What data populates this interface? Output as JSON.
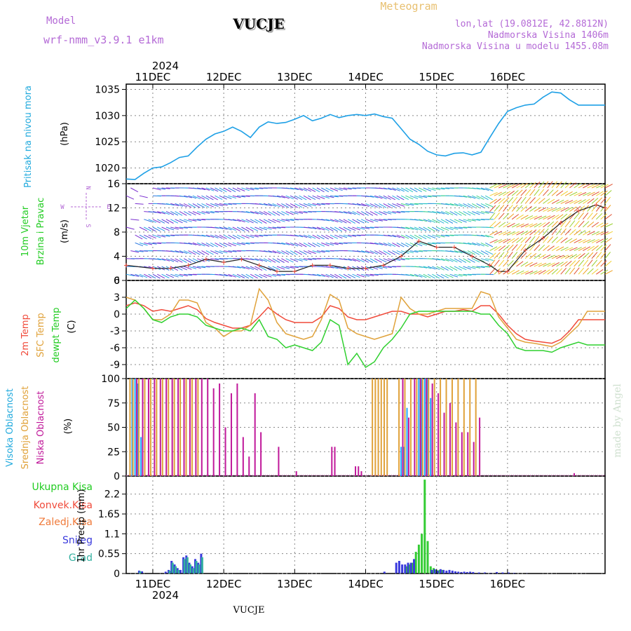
{
  "header": {
    "app_title": "Meteogram",
    "model_label": "Model",
    "model_name": "wrf-nmm_v3.9.1  e1km",
    "station": "VUCJE",
    "coords": "lon,lat (19.0812E, 42.8812N)",
    "altitude": "Nadmorska Visina 1406m",
    "model_altitude": "Nadmorska Visina u modelu 1455.08m",
    "watermark": "made by Angel",
    "footer_station": "VUCJE"
  },
  "colors": {
    "pressure": "#1ea0e6",
    "t2m": "#f04a3a",
    "sfc": "#e0a23a",
    "dew": "#2fd02f",
    "high": "#22aaff",
    "mid": "#e0a23a",
    "low": "#c0189a",
    "precip_total": "#33cc33",
    "precip_conv": "#f04a3a",
    "snow": "#3b3bdd",
    "hail": "#33b0a0"
  },
  "time_axis": {
    "year": "2024",
    "days": [
      "11DEC",
      "12DEC",
      "13DEC",
      "14DEC",
      "15DEC",
      "16DEC"
    ],
    "x_range_hours": [
      -9,
      153
    ]
  },
  "chart_data": [
    {
      "type": "line",
      "panel": "pressure",
      "ylabel": "Pritisak na nivou mora",
      "unit": "(hPa)",
      "ylim": [
        1017,
        1036
      ],
      "yticks": [
        1020,
        1025,
        1030,
        1035
      ],
      "x": [
        -9,
        -6,
        -3,
        0,
        3,
        6,
        9,
        12,
        15,
        18,
        21,
        24,
        27,
        30,
        33,
        36,
        39,
        42,
        45,
        48,
        51,
        54,
        57,
        60,
        63,
        66,
        69,
        72,
        75,
        78,
        81,
        84,
        87,
        90,
        93,
        96,
        99,
        102,
        105,
        108,
        111,
        114,
        117,
        120,
        123,
        126,
        129,
        132,
        135,
        138,
        141,
        144,
        147,
        150,
        153
      ],
      "values": [
        1017.9,
        1017.8,
        1019.0,
        1020.0,
        1020.2,
        1021.0,
        1022.0,
        1022.3,
        1024.0,
        1025.5,
        1026.5,
        1027.0,
        1027.8,
        1027.0,
        1025.8,
        1027.8,
        1028.8,
        1028.5,
        1028.7,
        1029.3,
        1030.0,
        1029.0,
        1029.5,
        1030.2,
        1029.6,
        1030.0,
        1030.2,
        1030.0,
        1030.3,
        1029.8,
        1029.5,
        1027.5,
        1025.5,
        1024.5,
        1023.2,
        1022.5,
        1022.3,
        1022.8,
        1022.9,
        1022.5,
        1023.0,
        1025.8,
        1028.5,
        1030.8,
        1031.5,
        1032.0,
        1032.2,
        1033.5,
        1034.5,
        1034.3,
        1033.0,
        1032.0,
        1032.0,
        1032.0,
        1032.0
      ]
    },
    {
      "type": "line",
      "panel": "wind",
      "ylabel": "10m Vjetar Brzina i Pravac",
      "unit": "(m/s)",
      "ylim": [
        0,
        16
      ],
      "yticks": [
        0,
        4,
        8,
        12,
        16
      ],
      "compass": [
        "N",
        "E",
        "S",
        "W"
      ],
      "x": [
        -9,
        0,
        6,
        12,
        18,
        24,
        30,
        36,
        42,
        48,
        54,
        60,
        66,
        72,
        78,
        84,
        90,
        96,
        102,
        108,
        114,
        117,
        120,
        126,
        132,
        138,
        144,
        150,
        153
      ],
      "values": [
        2.5,
        2.0,
        2.0,
        2.5,
        3.5,
        3.0,
        3.5,
        2.5,
        1.5,
        1.5,
        2.5,
        2.5,
        2.0,
        2.0,
        2.5,
        4.0,
        6.5,
        5.5,
        5.5,
        4.0,
        2.5,
        1.5,
        1.5,
        5.0,
        7.0,
        9.5,
        11.5,
        12.5,
        12.0
      ]
    },
    {
      "type": "line",
      "panel": "temperature",
      "ylabel": "2m Temp / SFC Temp / dewpt Temp",
      "unit": "(C)",
      "ylim": [
        -11.5,
        6
      ],
      "yticks": [
        6,
        3,
        0,
        -3,
        -6,
        -9
      ],
      "x": [
        -9,
        -6,
        -3,
        0,
        3,
        6,
        9,
        12,
        15,
        18,
        21,
        24,
        27,
        30,
        33,
        36,
        39,
        42,
        45,
        48,
        51,
        54,
        57,
        60,
        63,
        66,
        69,
        72,
        75,
        78,
        81,
        84,
        87,
        90,
        93,
        96,
        99,
        102,
        105,
        108,
        111,
        114,
        117,
        120,
        123,
        126,
        129,
        132,
        135,
        138,
        141,
        144,
        147,
        150,
        153
      ],
      "series": [
        {
          "name": "2m Temp",
          "values": [
            1.5,
            2.0,
            1.5,
            0.5,
            0.8,
            0.5,
            1.0,
            1.5,
            0.8,
            -0.8,
            -1.5,
            -2.0,
            -2.5,
            -2.5,
            -2.0,
            -0.5,
            1.2,
            0.0,
            -1.0,
            -1.5,
            -1.5,
            -1.5,
            -0.5,
            1.5,
            1.0,
            -0.5,
            -1.0,
            -1.0,
            -0.5,
            0.0,
            0.5,
            0.5,
            0.0,
            0.0,
            -0.5,
            0.0,
            0.5,
            0.5,
            0.8,
            0.5,
            1.5,
            1.5,
            0.0,
            -2.0,
            -3.5,
            -4.5,
            -4.8,
            -5.0,
            -5.2,
            -4.5,
            -3.0,
            -1.0,
            -1.0,
            -1.0,
            -1.0
          ]
        },
        {
          "name": "SFC Temp",
          "values": [
            3.0,
            2.5,
            1.0,
            -1.0,
            -1.0,
            0.0,
            2.5,
            2.5,
            2.0,
            -1.5,
            -2.5,
            -4.0,
            -3.0,
            -3.0,
            -2.0,
            4.5,
            2.5,
            -1.5,
            -3.5,
            -4.0,
            -4.5,
            -4.0,
            -1.0,
            3.5,
            2.5,
            -2.5,
            -3.5,
            -4.0,
            -4.5,
            -4.0,
            -3.5,
            3.0,
            1.0,
            0.0,
            0.0,
            0.5,
            1.0,
            1.0,
            1.0,
            1.0,
            4.0,
            3.5,
            -0.5,
            -2.5,
            -4.5,
            -5.0,
            -5.2,
            -5.5,
            -5.8,
            -5.0,
            -3.5,
            -2.0,
            0.5,
            0.5,
            0.5
          ]
        },
        {
          "name": "dewpt Temp",
          "values": [
            1.0,
            2.5,
            1.0,
            -1.0,
            -1.5,
            -0.5,
            0.0,
            0.0,
            -0.5,
            -2.0,
            -2.5,
            -3.0,
            -3.0,
            -2.5,
            -3.0,
            -1.0,
            -4.0,
            -4.5,
            -6.0,
            -5.5,
            -6.0,
            -6.5,
            -5.0,
            -1.0,
            -2.0,
            -9.0,
            -7.0,
            -9.5,
            -8.5,
            -6.0,
            -4.5,
            -2.5,
            0.0,
            0.5,
            0.5,
            0.5,
            0.5,
            0.5,
            0.5,
            0.5,
            0.0,
            0.0,
            -2.0,
            -3.5,
            -6.0,
            -6.5,
            -6.5,
            -6.5,
            -6.8,
            -6.0,
            -5.5,
            -5.0,
            -5.5,
            -5.5,
            -5.5
          ]
        }
      ]
    },
    {
      "type": "bar",
      "panel": "cloud",
      "ylabel": "Visoka Oblacnost / Srednja Oblacnost / Niska Oblacnost",
      "unit": "(%)",
      "ylim": [
        0,
        100
      ],
      "yticks": [
        0,
        25,
        50,
        75,
        100
      ],
      "series": [
        {
          "name": "Visoka Oblacnost",
          "x": [
            -7,
            -6,
            -5,
            -4,
            84,
            85,
            86,
            90,
            91,
            92,
            93,
            94
          ],
          "values": [
            100,
            100,
            95,
            40,
            30,
            30,
            70,
            100,
            100,
            100,
            100,
            80
          ]
        },
        {
          "name": "Srednja Oblacnost",
          "x": [
            -8,
            -7,
            -5,
            -3,
            -1,
            1,
            3,
            5,
            7,
            9,
            11,
            13,
            15,
            74,
            75,
            76,
            77,
            78,
            79,
            83,
            85,
            87,
            89,
            91,
            93,
            95,
            97,
            99,
            101,
            103,
            105,
            107,
            109
          ],
          "values": [
            100,
            100,
            100,
            100,
            100,
            100,
            100,
            100,
            100,
            100,
            100,
            100,
            100,
            100,
            100,
            100,
            100,
            100,
            100,
            100,
            100,
            100,
            100,
            100,
            100,
            100,
            100,
            100,
            100,
            100,
            100,
            100,
            100
          ]
        },
        {
          "name": "Niska Oblacnost",
          "x": [
            -6,
            -4,
            -2,
            0,
            2,
            4,
            6,
            8,
            10,
            12,
            14,
            16,
            18,
            20,
            22,
            24,
            26,
            28,
            30,
            32,
            34,
            36,
            42,
            48,
            60,
            61,
            68,
            69,
            70,
            84,
            86,
            88,
            90,
            92,
            94,
            96,
            98,
            100,
            102,
            104,
            106,
            108,
            110,
            142
          ],
          "values": [
            100,
            100,
            100,
            100,
            100,
            100,
            100,
            100,
            100,
            100,
            100,
            100,
            100,
            90,
            95,
            50,
            85,
            95,
            40,
            20,
            85,
            45,
            30,
            5,
            30,
            30,
            10,
            10,
            5,
            100,
            60,
            100,
            100,
            100,
            95,
            85,
            65,
            75,
            55,
            45,
            45,
            35,
            60,
            3
          ]
        }
      ]
    },
    {
      "type": "bar",
      "panel": "precip",
      "ylabel": "1hr Precip",
      "unit": "(mm)",
      "ylim": [
        0,
        2.7
      ],
      "yticks": [
        0,
        0.55,
        1.1,
        1.65,
        2.2
      ],
      "legend": [
        "Ukupna Kisa",
        "Konvek.Kisa",
        "Zaledj.Kisa",
        "Snijeg",
        "Grad"
      ],
      "series": [
        {
          "name": "Ukupna Kisa",
          "x": [
            86,
            87,
            88,
            89,
            90,
            91,
            92,
            93,
            94,
            95,
            96,
            97,
            98
          ],
          "values": [
            0.2,
            0.25,
            0.3,
            0.6,
            0.8,
            1.1,
            2.6,
            0.9,
            0.2,
            0.15,
            0.1,
            0.1,
            0.1
          ]
        },
        {
          "name": "Snijeg",
          "x": [
            -5,
            -4,
            4,
            5,
            6,
            7,
            8,
            9,
            10,
            11,
            12,
            13,
            14,
            15,
            16,
            78,
            82,
            83,
            84,
            85,
            86,
            87,
            88,
            94,
            95,
            96,
            97,
            98,
            99,
            100,
            101,
            102,
            103,
            104,
            105,
            106,
            107,
            108,
            110,
            112,
            114,
            116,
            118,
            120,
            122,
            124,
            126
          ],
          "values": [
            0.08,
            0.06,
            0.05,
            0.1,
            0.35,
            0.25,
            0.15,
            0.1,
            0.45,
            0.5,
            0.3,
            0.2,
            0.4,
            0.3,
            0.55,
            0.05,
            0.3,
            0.35,
            0.25,
            0.25,
            0.3,
            0.3,
            0.4,
            0.1,
            0.12,
            0.08,
            0.12,
            0.1,
            0.08,
            0.1,
            0.08,
            0.06,
            0.05,
            0.04,
            0.05,
            0.04,
            0.05,
            0.04,
            0.03,
            0.03,
            0.02,
            0.04,
            0.03,
            0.03,
            0.02,
            0.01,
            0.01
          ]
        },
        {
          "name": "Grad",
          "x": [
            -5,
            5,
            6,
            7,
            8,
            10,
            11,
            12,
            13,
            14,
            15,
            16
          ],
          "values": [
            0.06,
            0.08,
            0.3,
            0.2,
            0.1,
            0.4,
            0.45,
            0.25,
            0.15,
            0.35,
            0.25,
            0.45
          ]
        }
      ]
    }
  ]
}
